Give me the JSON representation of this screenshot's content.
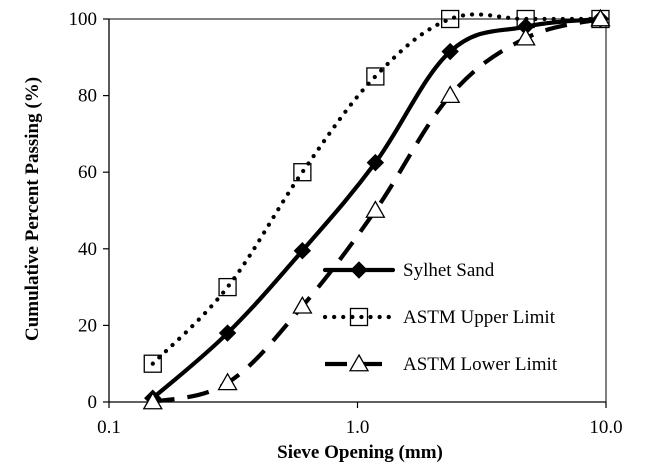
{
  "chart_data": {
    "type": "line",
    "xscale": "log",
    "xlabel": "Sieve Opening (mm)",
    "ylabel": "Cumulative Percent Passing (%)",
    "xlim": [
      0.1,
      10.0
    ],
    "ylim": [
      0,
      100
    ],
    "xticks": [
      "0.1",
      "1.0",
      "10.0"
    ],
    "yticks": [
      "0",
      "20",
      "40",
      "60",
      "80",
      "100"
    ],
    "grid": false,
    "legend_position": "bottom-right",
    "series": [
      {
        "name": "Sylhet Sand",
        "marker": "diamond-filled",
        "line": "solid",
        "color": "#000000",
        "x": [
          0.15,
          0.3,
          0.6,
          1.18,
          2.36,
          4.75,
          9.5
        ],
        "y": [
          1,
          18,
          39.5,
          62.5,
          91.5,
          98,
          100
        ]
      },
      {
        "name": "ASTM Upper Limit",
        "marker": "square-open",
        "line": "dotted",
        "color": "#000000",
        "x": [
          0.15,
          0.3,
          0.6,
          1.18,
          2.36,
          4.75,
          9.5
        ],
        "y": [
          10,
          30,
          60,
          85,
          100,
          100,
          100
        ]
      },
      {
        "name": "ASTM Lower Limit",
        "marker": "triangle-open",
        "line": "dashed",
        "color": "#000000",
        "x": [
          0.15,
          0.3,
          0.6,
          1.18,
          2.36,
          4.75,
          9.5
        ],
        "y": [
          0,
          5,
          25,
          50,
          80,
          95,
          100
        ]
      }
    ]
  }
}
